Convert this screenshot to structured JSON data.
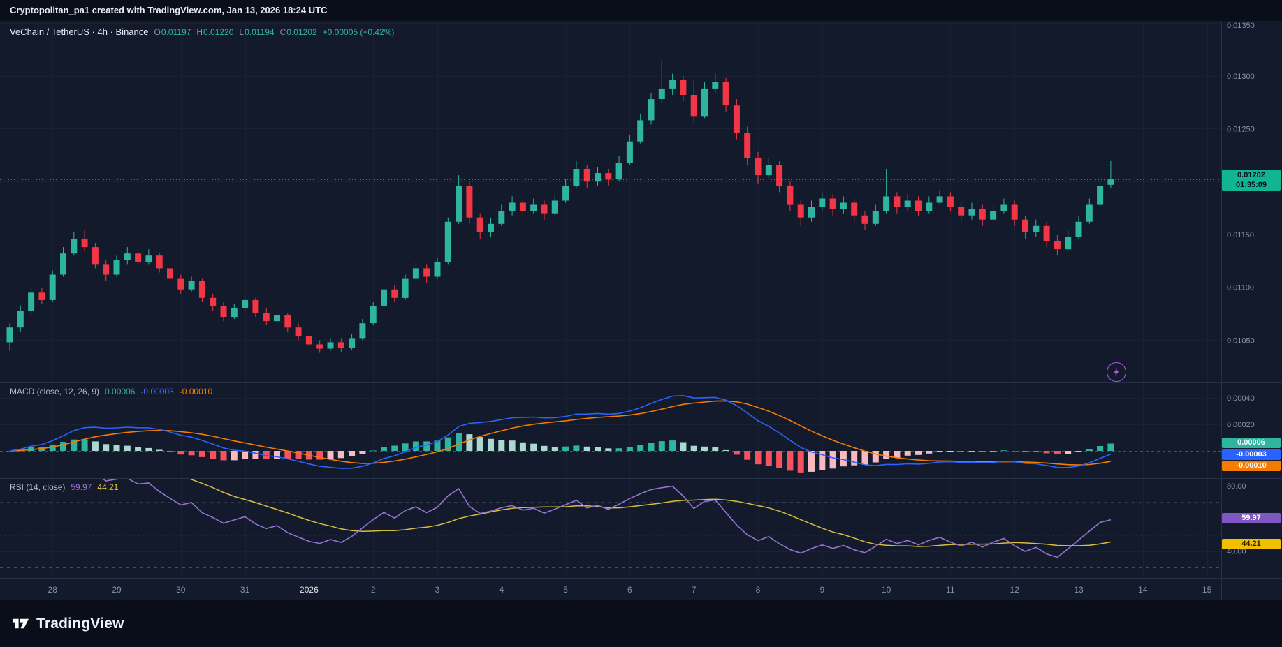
{
  "attribution": "Cryptopolitan_pa1 created with TradingView.com, Jan 13, 2026 18:24 UTC",
  "legend": {
    "title": "VeChain / TetherUS · 4h · Binance",
    "ohlc": [
      {
        "label": "O",
        "value": "0.01197"
      },
      {
        "label": "H",
        "value": "0.01220"
      },
      {
        "label": "L",
        "value": "0.01194"
      },
      {
        "label": "C",
        "value": "0.01202"
      }
    ],
    "change": "+0.00005 (+0.42%)"
  },
  "macd_legend": {
    "title": "MACD (close, 12, 26, 9)",
    "values": [
      {
        "text": "0.00006",
        "color": "#2eb5a0"
      },
      {
        "text": "-0.00003",
        "color": "#2962ff"
      },
      {
        "text": "-0.00010",
        "color": "#f57c00"
      }
    ]
  },
  "rsi_legend": {
    "title": "RSI (14, close)",
    "values": [
      {
        "text": "59.97",
        "color": "#9673d3"
      },
      {
        "text": "44.21",
        "color": "#e0c23f"
      }
    ]
  },
  "price_axis": {
    "ticks": [
      "0.01350",
      "0.01300",
      "0.01250",
      "0.01200",
      "0.01150",
      "0.01100",
      "0.01050"
    ],
    "last_price_label": {
      "price": "0.01202",
      "countdown": "01:35:09"
    }
  },
  "macd_axis": {
    "ticks": [
      "0.00040",
      "0.00020"
    ],
    "badges": [
      {
        "text": "0.00006",
        "color": "#2eb5a0"
      },
      {
        "text": "-0.00003",
        "color": "#2962ff"
      },
      {
        "text": "-0.00010",
        "color": "#f57c00"
      }
    ]
  },
  "rsi_axis": {
    "ticks": [
      {
        "label": "80.00",
        "value": 80
      },
      {
        "label": "40.00",
        "value": 40
      }
    ],
    "badges": [
      {
        "text": "59.97",
        "color": "#7e57c2"
      },
      {
        "text": "44.21",
        "color": "#f0c000"
      }
    ]
  },
  "time_axis": {
    "labels": [
      {
        "text": "28"
      },
      {
        "text": "29"
      },
      {
        "text": "30"
      },
      {
        "text": "31"
      },
      {
        "text": "2026",
        "em": true
      },
      {
        "text": "2"
      },
      {
        "text": "3"
      },
      {
        "text": "4"
      },
      {
        "text": "5"
      },
      {
        "text": "6"
      },
      {
        "text": "7"
      },
      {
        "text": "8"
      },
      {
        "text": "9"
      },
      {
        "text": "10"
      },
      {
        "text": "11"
      },
      {
        "text": "12"
      },
      {
        "text": "13"
      },
      {
        "text": "14"
      },
      {
        "text": "15"
      }
    ]
  },
  "footer": {
    "brand": "TradingView"
  },
  "colors": {
    "up": "#2eb5a0",
    "down": "#f23645",
    "histUp": "#2eb5a0",
    "histUpPale": "#aad9d0",
    "histDown": "#f7525f",
    "histDownPale": "#f8b9bf",
    "macd": "#2962ff",
    "signal": "#f57c00",
    "rsi": "#9673d3",
    "rsiMa": "#d9bd3f",
    "grid": "#1a2133",
    "separator": "#263048",
    "zero": "#454f66",
    "axisText": "#8691a8",
    "axisTextBright": "#dde2ee",
    "priceBadge": "#11b592",
    "bg": "#131a2b",
    "frame": "#0a0e1a"
  },
  "chart_data": [
    {
      "type": "candlestick",
      "title": "VeChain / TetherUS",
      "interval": "4h",
      "exchange": "Binance",
      "price_unit": 1e-05,
      "ylim": [
        0.0101,
        0.01352
      ],
      "x_axis_labels": [
        "28",
        "29",
        "30",
        "31",
        "2026",
        "2",
        "3",
        "4",
        "5",
        "6",
        "7",
        "8",
        "9",
        "10",
        "11",
        "12",
        "13",
        "14",
        "15"
      ],
      "candles_per_day": 6,
      "first_label_candle_index": 4,
      "last_candle": {
        "o": "0.01197",
        "h": "0.01220",
        "l": "0.01194",
        "c": "0.01202",
        "change": "+0.00005 (+0.42%)"
      },
      "ohlc_units": [
        [
          1048,
          1066,
          1040,
          1062
        ],
        [
          1062,
          1082,
          1058,
          1078
        ],
        [
          1078,
          1099,
          1074,
          1095
        ],
        [
          1095,
          1100,
          1084,
          1088
        ],
        [
          1088,
          1116,
          1086,
          1112
        ],
        [
          1112,
          1138,
          1110,
          1132
        ],
        [
          1132,
          1152,
          1130,
          1146
        ],
        [
          1146,
          1154,
          1134,
          1138
        ],
        [
          1138,
          1142,
          1118,
          1122
        ],
        [
          1122,
          1126,
          1106,
          1112
        ],
        [
          1112,
          1130,
          1110,
          1126
        ],
        [
          1126,
          1138,
          1122,
          1132
        ],
        [
          1132,
          1136,
          1120,
          1124
        ],
        [
          1124,
          1136,
          1122,
          1130
        ],
        [
          1130,
          1132,
          1114,
          1118
        ],
        [
          1118,
          1122,
          1104,
          1108
        ],
        [
          1108,
          1112,
          1094,
          1098
        ],
        [
          1098,
          1110,
          1096,
          1106
        ],
        [
          1106,
          1108,
          1086,
          1090
        ],
        [
          1090,
          1094,
          1078,
          1082
        ],
        [
          1082,
          1086,
          1068,
          1072
        ],
        [
          1072,
          1084,
          1070,
          1080
        ],
        [
          1080,
          1092,
          1078,
          1088
        ],
        [
          1088,
          1090,
          1072,
          1076
        ],
        [
          1076,
          1080,
          1064,
          1068
        ],
        [
          1068,
          1078,
          1066,
          1074
        ],
        [
          1074,
          1076,
          1058,
          1062
        ],
        [
          1062,
          1066,
          1050,
          1054
        ],
        [
          1054,
          1058,
          1042,
          1046
        ],
        [
          1046,
          1050,
          1038,
          1042
        ],
        [
          1042,
          1052,
          1040,
          1048
        ],
        [
          1048,
          1052,
          1039,
          1043
        ],
        [
          1043,
          1056,
          1041,
          1052
        ],
        [
          1052,
          1070,
          1050,
          1066
        ],
        [
          1066,
          1086,
          1064,
          1082
        ],
        [
          1082,
          1102,
          1080,
          1098
        ],
        [
          1098,
          1102,
          1086,
          1090
        ],
        [
          1090,
          1112,
          1088,
          1108
        ],
        [
          1108,
          1124,
          1106,
          1118
        ],
        [
          1118,
          1122,
          1104,
          1110
        ],
        [
          1110,
          1128,
          1108,
          1124
        ],
        [
          1124,
          1166,
          1122,
          1162
        ],
        [
          1162,
          1206,
          1160,
          1196
        ],
        [
          1196,
          1200,
          1160,
          1166
        ],
        [
          1166,
          1170,
          1146,
          1152
        ],
        [
          1152,
          1166,
          1148,
          1160
        ],
        [
          1160,
          1178,
          1158,
          1172
        ],
        [
          1172,
          1186,
          1168,
          1180
        ],
        [
          1180,
          1184,
          1166,
          1172
        ],
        [
          1172,
          1184,
          1170,
          1178
        ],
        [
          1178,
          1182,
          1164,
          1170
        ],
        [
          1170,
          1188,
          1168,
          1182
        ],
        [
          1182,
          1202,
          1180,
          1196
        ],
        [
          1196,
          1220,
          1194,
          1212
        ],
        [
          1212,
          1216,
          1194,
          1200
        ],
        [
          1200,
          1214,
          1196,
          1208
        ],
        [
          1208,
          1212,
          1196,
          1202
        ],
        [
          1202,
          1224,
          1200,
          1218
        ],
        [
          1218,
          1244,
          1216,
          1238
        ],
        [
          1238,
          1264,
          1236,
          1258
        ],
        [
          1258,
          1284,
          1254,
          1278
        ],
        [
          1278,
          1315,
          1274,
          1288
        ],
        [
          1288,
          1302,
          1282,
          1296
        ],
        [
          1296,
          1300,
          1276,
          1282
        ],
        [
          1282,
          1296,
          1256,
          1262
        ],
        [
          1262,
          1294,
          1260,
          1288
        ],
        [
          1288,
          1302,
          1284,
          1294
        ],
        [
          1294,
          1298,
          1266,
          1272
        ],
        [
          1272,
          1278,
          1240,
          1246
        ],
        [
          1246,
          1252,
          1216,
          1222
        ],
        [
          1222,
          1228,
          1198,
          1206
        ],
        [
          1206,
          1222,
          1202,
          1216
        ],
        [
          1216,
          1220,
          1190,
          1196
        ],
        [
          1196,
          1200,
          1172,
          1178
        ],
        [
          1178,
          1182,
          1158,
          1166
        ],
        [
          1166,
          1182,
          1162,
          1176
        ],
        [
          1176,
          1190,
          1172,
          1184
        ],
        [
          1184,
          1188,
          1168,
          1174
        ],
        [
          1174,
          1186,
          1170,
          1180
        ],
        [
          1180,
          1184,
          1162,
          1168
        ],
        [
          1168,
          1172,
          1154,
          1160
        ],
        [
          1160,
          1178,
          1158,
          1172
        ],
        [
          1172,
          1212,
          1170,
          1186
        ],
        [
          1186,
          1190,
          1170,
          1176
        ],
        [
          1176,
          1188,
          1172,
          1182
        ],
        [
          1182,
          1186,
          1168,
          1172
        ],
        [
          1172,
          1186,
          1170,
          1180
        ],
        [
          1180,
          1192,
          1178,
          1186
        ],
        [
          1186,
          1190,
          1172,
          1176
        ],
        [
          1176,
          1180,
          1162,
          1168
        ],
        [
          1168,
          1180,
          1164,
          1174
        ],
        [
          1174,
          1178,
          1158,
          1164
        ],
        [
          1164,
          1178,
          1162,
          1172
        ],
        [
          1172,
          1184,
          1170,
          1178
        ],
        [
          1178,
          1182,
          1158,
          1164
        ],
        [
          1164,
          1168,
          1146,
          1152
        ],
        [
          1152,
          1164,
          1148,
          1158
        ],
        [
          1158,
          1162,
          1138,
          1144
        ],
        [
          1144,
          1150,
          1130,
          1136
        ],
        [
          1136,
          1154,
          1134,
          1148
        ],
        [
          1148,
          1168,
          1146,
          1162
        ],
        [
          1162,
          1184,
          1160,
          1178
        ],
        [
          1178,
          1202,
          1176,
          1196
        ],
        [
          1197,
          1220,
          1194,
          1202
        ]
      ]
    },
    {
      "type": "bar",
      "subtype": "macd-histogram",
      "title": "MACD (close, 12, 26, 9)",
      "derived_from_ohlc": true,
      "displayed_values": {
        "histogram": 6e-05,
        "macd": -3e-05,
        "signal": -0.0001
      },
      "axis_ticks": [
        0.0004,
        0.0002
      ],
      "ylim": [
        -0.0002,
        0.0005
      ]
    },
    {
      "type": "line",
      "subtype": "rsi",
      "title": "RSI (14, close)",
      "derived_from_ohlc": true,
      "displayed_values": {
        "rsi": 59.97,
        "rsi_ma": 44.21
      },
      "bands": [
        70,
        50,
        30
      ],
      "axis_ticks": [
        80,
        40
      ],
      "ylim": [
        22,
        85
      ]
    }
  ]
}
